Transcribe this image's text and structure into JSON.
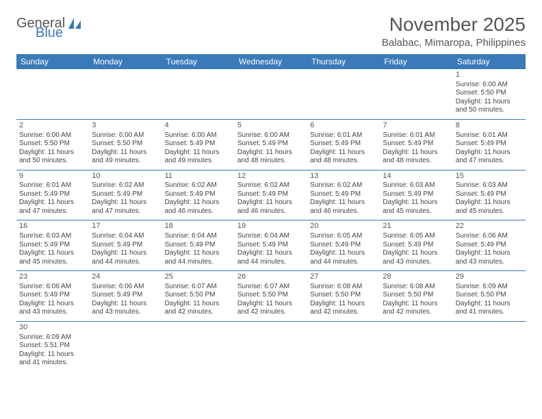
{
  "logo": {
    "word1": "General",
    "word2": "Blue"
  },
  "title": "November 2025",
  "subtitle": "Balabac, Mimaropa, Philippines",
  "colors": {
    "headerBg": "#3a7ab8",
    "headerText": "#ffffff",
    "border": "#3a7ab8",
    "text": "#444444"
  },
  "columns": [
    "Sunday",
    "Monday",
    "Tuesday",
    "Wednesday",
    "Thursday",
    "Friday",
    "Saturday"
  ],
  "weeks": [
    [
      null,
      null,
      null,
      null,
      null,
      null,
      {
        "n": "1",
        "sr": "Sunrise: 6:00 AM",
        "ss": "Sunset: 5:50 PM",
        "dl": "Daylight: 11 hours and 50 minutes."
      }
    ],
    [
      {
        "n": "2",
        "sr": "Sunrise: 6:00 AM",
        "ss": "Sunset: 5:50 PM",
        "dl": "Daylight: 11 hours and 50 minutes."
      },
      {
        "n": "3",
        "sr": "Sunrise: 6:00 AM",
        "ss": "Sunset: 5:50 PM",
        "dl": "Daylight: 11 hours and 49 minutes."
      },
      {
        "n": "4",
        "sr": "Sunrise: 6:00 AM",
        "ss": "Sunset: 5:49 PM",
        "dl": "Daylight: 11 hours and 49 minutes."
      },
      {
        "n": "5",
        "sr": "Sunrise: 6:00 AM",
        "ss": "Sunset: 5:49 PM",
        "dl": "Daylight: 11 hours and 48 minutes."
      },
      {
        "n": "6",
        "sr": "Sunrise: 6:01 AM",
        "ss": "Sunset: 5:49 PM",
        "dl": "Daylight: 11 hours and 48 minutes."
      },
      {
        "n": "7",
        "sr": "Sunrise: 6:01 AM",
        "ss": "Sunset: 5:49 PM",
        "dl": "Daylight: 11 hours and 48 minutes."
      },
      {
        "n": "8",
        "sr": "Sunrise: 6:01 AM",
        "ss": "Sunset: 5:49 PM",
        "dl": "Daylight: 11 hours and 47 minutes."
      }
    ],
    [
      {
        "n": "9",
        "sr": "Sunrise: 6:01 AM",
        "ss": "Sunset: 5:49 PM",
        "dl": "Daylight: 11 hours and 47 minutes."
      },
      {
        "n": "10",
        "sr": "Sunrise: 6:02 AM",
        "ss": "Sunset: 5:49 PM",
        "dl": "Daylight: 11 hours and 47 minutes."
      },
      {
        "n": "11",
        "sr": "Sunrise: 6:02 AM",
        "ss": "Sunset: 5:49 PM",
        "dl": "Daylight: 11 hours and 46 minutes."
      },
      {
        "n": "12",
        "sr": "Sunrise: 6:02 AM",
        "ss": "Sunset: 5:49 PM",
        "dl": "Daylight: 11 hours and 46 minutes."
      },
      {
        "n": "13",
        "sr": "Sunrise: 6:02 AM",
        "ss": "Sunset: 5:49 PM",
        "dl": "Daylight: 11 hours and 46 minutes."
      },
      {
        "n": "14",
        "sr": "Sunrise: 6:03 AM",
        "ss": "Sunset: 5:49 PM",
        "dl": "Daylight: 11 hours and 45 minutes."
      },
      {
        "n": "15",
        "sr": "Sunrise: 6:03 AM",
        "ss": "Sunset: 5:49 PM",
        "dl": "Daylight: 11 hours and 45 minutes."
      }
    ],
    [
      {
        "n": "16",
        "sr": "Sunrise: 6:03 AM",
        "ss": "Sunset: 5:49 PM",
        "dl": "Daylight: 11 hours and 45 minutes."
      },
      {
        "n": "17",
        "sr": "Sunrise: 6:04 AM",
        "ss": "Sunset: 5:49 PM",
        "dl": "Daylight: 11 hours and 44 minutes."
      },
      {
        "n": "18",
        "sr": "Sunrise: 6:04 AM",
        "ss": "Sunset: 5:49 PM",
        "dl": "Daylight: 11 hours and 44 minutes."
      },
      {
        "n": "19",
        "sr": "Sunrise: 6:04 AM",
        "ss": "Sunset: 5:49 PM",
        "dl": "Daylight: 11 hours and 44 minutes."
      },
      {
        "n": "20",
        "sr": "Sunrise: 6:05 AM",
        "ss": "Sunset: 5:49 PM",
        "dl": "Daylight: 11 hours and 44 minutes."
      },
      {
        "n": "21",
        "sr": "Sunrise: 6:05 AM",
        "ss": "Sunset: 5:49 PM",
        "dl": "Daylight: 11 hours and 43 minutes."
      },
      {
        "n": "22",
        "sr": "Sunrise: 6:06 AM",
        "ss": "Sunset: 5:49 PM",
        "dl": "Daylight: 11 hours and 43 minutes."
      }
    ],
    [
      {
        "n": "23",
        "sr": "Sunrise: 6:06 AM",
        "ss": "Sunset: 5:49 PM",
        "dl": "Daylight: 11 hours and 43 minutes."
      },
      {
        "n": "24",
        "sr": "Sunrise: 6:06 AM",
        "ss": "Sunset: 5:49 PM",
        "dl": "Daylight: 11 hours and 43 minutes."
      },
      {
        "n": "25",
        "sr": "Sunrise: 6:07 AM",
        "ss": "Sunset: 5:50 PM",
        "dl": "Daylight: 11 hours and 42 minutes."
      },
      {
        "n": "26",
        "sr": "Sunrise: 6:07 AM",
        "ss": "Sunset: 5:50 PM",
        "dl": "Daylight: 11 hours and 42 minutes."
      },
      {
        "n": "27",
        "sr": "Sunrise: 6:08 AM",
        "ss": "Sunset: 5:50 PM",
        "dl": "Daylight: 11 hours and 42 minutes."
      },
      {
        "n": "28",
        "sr": "Sunrise: 6:08 AM",
        "ss": "Sunset: 5:50 PM",
        "dl": "Daylight: 11 hours and 42 minutes."
      },
      {
        "n": "29",
        "sr": "Sunrise: 6:09 AM",
        "ss": "Sunset: 5:50 PM",
        "dl": "Daylight: 11 hours and 41 minutes."
      }
    ],
    [
      {
        "n": "30",
        "sr": "Sunrise: 6:09 AM",
        "ss": "Sunset: 5:51 PM",
        "dl": "Daylight: 11 hours and 41 minutes."
      },
      null,
      null,
      null,
      null,
      null,
      null
    ]
  ]
}
